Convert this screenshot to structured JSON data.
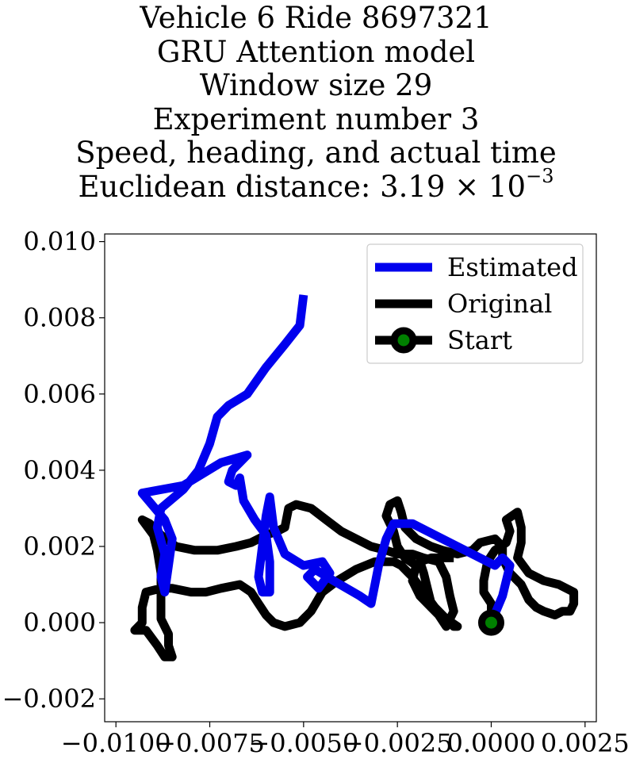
{
  "title": {
    "line1": "Vehicle 6 Ride 8697321",
    "line2": "GRU Attention model",
    "line3": "Window size 29",
    "line4": "Experiment number 3",
    "line5": "Speed, heading, and actual time",
    "line6_prefix": "Euclidean distance: 3.19 × 10",
    "line6_exponent": "−3"
  },
  "chart_data": {
    "type": "line",
    "xlim": [
      -0.0103,
      0.0028
    ],
    "ylim": [
      -0.0026,
      0.0102
    ],
    "xticks": [
      -0.01,
      -0.0075,
      -0.005,
      -0.0025,
      0.0,
      0.0025
    ],
    "xtick_labels": [
      "−0.0100",
      "−0.0075",
      "−0.0050",
      "−0.0025",
      "0.0000",
      "0.0025"
    ],
    "yticks": [
      -0.002,
      0.0,
      0.002,
      0.004,
      0.006,
      0.008,
      0.01
    ],
    "ytick_labels": [
      "−0.002",
      "0.000",
      "0.002",
      "0.004",
      "0.006",
      "0.008",
      "0.010"
    ],
    "grid": false,
    "legend_position": "top-right",
    "series": [
      {
        "name": "Estimated",
        "color": "#0000ee",
        "points": [
          [
            0.0,
            0.0
          ],
          [
            0.0003,
            0.0007
          ],
          [
            0.0005,
            0.0015
          ],
          [
            0.0003,
            0.0017
          ],
          [
            0.0001,
            0.0015
          ],
          [
            -0.0005,
            0.0018
          ],
          [
            -0.0015,
            0.0023
          ],
          [
            -0.0021,
            0.0026
          ],
          [
            -0.0026,
            0.0026
          ],
          [
            -0.0028,
            0.0022
          ],
          [
            -0.003,
            0.0015
          ],
          [
            -0.0031,
            0.001
          ],
          [
            -0.0032,
            0.0005
          ],
          [
            -0.0035,
            0.0007
          ],
          [
            -0.0042,
            0.0011
          ],
          [
            -0.0047,
            0.0014
          ],
          [
            -0.0049,
            0.0012
          ],
          [
            -0.0046,
            0.0009
          ],
          [
            -0.0043,
            0.0013
          ],
          [
            -0.0045,
            0.0016
          ],
          [
            -0.005,
            0.0015
          ],
          [
            -0.0055,
            0.0018
          ],
          [
            -0.0058,
            0.0025
          ],
          [
            -0.0059,
            0.0033
          ],
          [
            -0.006,
            0.0028
          ],
          [
            -0.0061,
            0.002
          ],
          [
            -0.0062,
            0.0012
          ],
          [
            -0.0061,
            0.0008
          ],
          [
            -0.0059,
            0.0008
          ],
          [
            -0.0059,
            0.0016
          ],
          [
            -0.006,
            0.0023
          ],
          [
            -0.0063,
            0.0027
          ],
          [
            -0.0066,
            0.0032
          ],
          [
            -0.0067,
            0.0038
          ],
          [
            -0.0068,
            0.0036
          ],
          [
            -0.007,
            0.0037
          ],
          [
            -0.0069,
            0.004
          ],
          [
            -0.0065,
            0.0044
          ],
          [
            -0.0072,
            0.0042
          ],
          [
            -0.0082,
            0.0036
          ],
          [
            -0.0093,
            0.0034
          ],
          [
            -0.0087,
            0.0027
          ],
          [
            -0.0085,
            0.0022
          ],
          [
            -0.0086,
            0.0015
          ],
          [
            -0.0087,
            0.0008
          ],
          [
            -0.0088,
            0.0012
          ],
          [
            -0.0087,
            0.0018
          ],
          [
            -0.0089,
            0.0025
          ],
          [
            -0.0088,
            0.003
          ],
          [
            -0.0082,
            0.0035
          ],
          [
            -0.0078,
            0.004
          ],
          [
            -0.0075,
            0.0047
          ],
          [
            -0.0073,
            0.0054
          ],
          [
            -0.007,
            0.0057
          ],
          [
            -0.0065,
            0.006
          ],
          [
            -0.006,
            0.0067
          ],
          [
            -0.0055,
            0.0073
          ],
          [
            -0.0051,
            0.0078
          ],
          [
            -0.005,
            0.0086
          ]
        ]
      },
      {
        "name": "Original",
        "color": "#000000",
        "points": [
          [
            0.0,
            0.0
          ],
          [
            0.0,
            0.0005
          ],
          [
            -0.0002,
            0.0008
          ],
          [
            -0.0002,
            0.0011
          ],
          [
            -0.0001,
            0.0016
          ],
          [
            0.0001,
            0.0019
          ],
          [
            0.0004,
            0.0021
          ],
          [
            0.0005,
            0.0024
          ],
          [
            0.0004,
            0.0027
          ],
          [
            0.0007,
            0.0029
          ],
          [
            0.0008,
            0.0025
          ],
          [
            0.0008,
            0.0021
          ],
          [
            0.0007,
            0.0017
          ],
          [
            0.001,
            0.0013
          ],
          [
            0.0014,
            0.0011
          ],
          [
            0.0018,
            0.001
          ],
          [
            0.0022,
            0.0008
          ],
          [
            0.0022,
            0.0005
          ],
          [
            0.0021,
            0.0003
          ],
          [
            0.0019,
            0.0003
          ],
          [
            0.0017,
            0.0002
          ],
          [
            0.0014,
            0.0003
          ],
          [
            0.0012,
            0.0004
          ],
          [
            0.001,
            0.0006
          ],
          [
            0.0008,
            0.001
          ],
          [
            0.0005,
            0.0013
          ],
          [
            0.0003,
            0.0017
          ],
          [
            0.0003,
            0.002
          ],
          [
            0.0001,
            0.0022
          ],
          [
            -0.0003,
            0.0021
          ],
          [
            -0.0005,
            0.0019
          ],
          [
            -0.0009,
            0.0018
          ],
          [
            -0.0013,
            0.0019
          ],
          [
            -0.0016,
            0.002
          ],
          [
            -0.002,
            0.0022
          ],
          [
            -0.0023,
            0.0025
          ],
          [
            -0.0024,
            0.0029
          ],
          [
            -0.0025,
            0.0032
          ],
          [
            -0.0027,
            0.0031
          ],
          [
            -0.0028,
            0.0028
          ],
          [
            -0.0026,
            0.0024
          ],
          [
            -0.0025,
            0.002
          ],
          [
            -0.0023,
            0.0017
          ],
          [
            -0.002,
            0.0015
          ],
          [
            -0.0021,
            0.0011
          ],
          [
            -0.0019,
            0.0007
          ],
          [
            -0.0016,
            0.0004
          ],
          [
            -0.0013,
            0.0001
          ],
          [
            -0.0011,
            0.0
          ],
          [
            -0.001,
            -0.0001
          ],
          [
            -0.0009,
            -0.0001
          ],
          [
            -0.0012,
            0.0001
          ],
          [
            -0.0015,
            0.0004
          ],
          [
            -0.0018,
            0.0008
          ],
          [
            -0.0021,
            0.0012
          ],
          [
            -0.0024,
            0.0015
          ],
          [
            -0.0026,
            0.0016
          ],
          [
            -0.0031,
            0.0016
          ],
          [
            -0.0036,
            0.0014
          ],
          [
            -0.0041,
            0.0011
          ],
          [
            -0.0045,
            0.0008
          ],
          [
            -0.0048,
            0.0003
          ],
          [
            -0.0051,
            0.0
          ],
          [
            -0.0055,
            -0.0001
          ],
          [
            -0.0058,
            0.0
          ],
          [
            -0.006,
            0.0002
          ],
          [
            -0.0062,
            0.0005
          ],
          [
            -0.0064,
            0.0008
          ],
          [
            -0.0067,
            0.001
          ],
          [
            -0.0072,
            0.0009
          ],
          [
            -0.0076,
            0.0008
          ],
          [
            -0.008,
            0.0008
          ],
          [
            -0.0085,
            0.0009
          ],
          [
            -0.0088,
            0.0009
          ],
          [
            -0.0092,
            0.0008
          ],
          [
            -0.0093,
            0.0004
          ],
          [
            -0.0093,
            0.0
          ],
          [
            -0.0095,
            -0.0002
          ],
          [
            -0.0092,
            -0.0002
          ],
          [
            -0.0089,
            -0.0006
          ],
          [
            -0.0087,
            -0.0009
          ],
          [
            -0.0085,
            -0.0009
          ],
          [
            -0.0086,
            -0.0006
          ],
          [
            -0.0086,
            -0.0003
          ],
          [
            -0.0088,
            0.0001
          ],
          [
            -0.0088,
            0.0007
          ],
          [
            -0.0088,
            0.0013
          ],
          [
            -0.0089,
            0.0019
          ],
          [
            -0.009,
            0.0023
          ],
          [
            -0.0093,
            0.0027
          ],
          [
            -0.0091,
            0.0026
          ],
          [
            -0.0088,
            0.0023
          ],
          [
            -0.0084,
            0.002
          ],
          [
            -0.0079,
            0.0019
          ],
          [
            -0.0073,
            0.0019
          ],
          [
            -0.0068,
            0.002
          ],
          [
            -0.0064,
            0.0021
          ],
          [
            -0.006,
            0.0023
          ],
          [
            -0.0057,
            0.0024
          ],
          [
            -0.0055,
            0.0025
          ],
          [
            -0.0054,
            0.003
          ],
          [
            -0.0052,
            0.0031
          ],
          [
            -0.0048,
            0.003
          ],
          [
            -0.0044,
            0.0027
          ],
          [
            -0.004,
            0.0024
          ],
          [
            -0.0036,
            0.0022
          ],
          [
            -0.0032,
            0.002
          ],
          [
            -0.0028,
            0.0019
          ],
          [
            -0.0025,
            0.0018
          ],
          [
            -0.0021,
            0.0018
          ],
          [
            -0.0018,
            0.0017
          ],
          [
            -0.0014,
            0.0016
          ],
          [
            -0.0012,
            0.0012
          ],
          [
            -0.0011,
            0.0007
          ],
          [
            -0.001,
            0.0003
          ],
          [
            -0.0012,
            -0.0001
          ],
          [
            -0.0014,
            0.0002
          ],
          [
            -0.0016,
            0.0005
          ],
          [
            -0.0017,
            0.0009
          ],
          [
            -0.0018,
            0.0013
          ],
          [
            -0.0019,
            0.0016
          ],
          [
            -0.0016,
            0.0017
          ],
          [
            -0.0012,
            0.0017
          ],
          [
            -0.001,
            0.0017
          ]
        ]
      }
    ],
    "start_marker": {
      "name": "Start",
      "x": 0.0,
      "y": 0.0,
      "fill": "#008000",
      "edge": "#000000"
    }
  }
}
